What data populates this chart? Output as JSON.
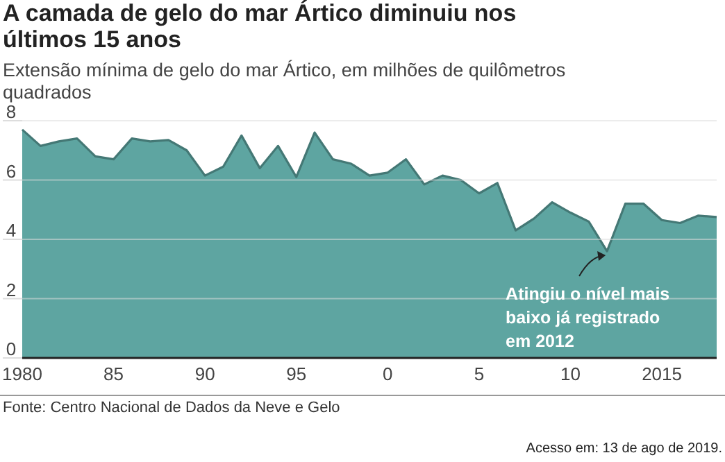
{
  "chart_data": {
    "type": "area",
    "title": "A camada de gelo do mar Ártico diminuiu nos últimos 15 anos",
    "subtitle": "Extensão mínima de gelo do mar Ártico, em milhões de quilômetros quadrados",
    "categories": [
      "1980",
      null,
      null,
      null,
      null,
      "85",
      null,
      null,
      null,
      null,
      "90",
      null,
      null,
      null,
      null,
      "95",
      null,
      null,
      null,
      null,
      "0",
      null,
      null,
      null,
      null,
      "5",
      null,
      null,
      null,
      null,
      "10",
      null,
      null,
      null,
      null,
      "2015",
      null,
      null,
      null
    ],
    "series": [
      {
        "color": "#5ea5a1",
        "values": [
          7.7,
          7.15,
          7.3,
          7.4,
          6.8,
          6.7,
          7.4,
          7.3,
          7.35,
          7.0,
          6.15,
          6.45,
          7.5,
          6.4,
          7.15,
          6.1,
          7.6,
          6.7,
          6.55,
          6.15,
          6.25,
          6.7,
          5.85,
          6.15,
          6.0,
          5.55,
          5.9,
          4.3,
          4.7,
          5.25,
          4.9,
          4.6,
          3.6,
          5.2,
          5.2,
          4.65,
          4.55,
          4.8,
          4.75
        ]
      }
    ],
    "ylim": [
      0,
      8
    ],
    "yticks": [
      0,
      2,
      4,
      6,
      8
    ],
    "grid": "y",
    "annotations": [
      "Atingiu o nível mais baixo já registrado em 2012",
      "Fonte: Centro Nacional de Dados da Neve e Gelo",
      "Acesso em: 13 de ago de 2019."
    ]
  }
}
